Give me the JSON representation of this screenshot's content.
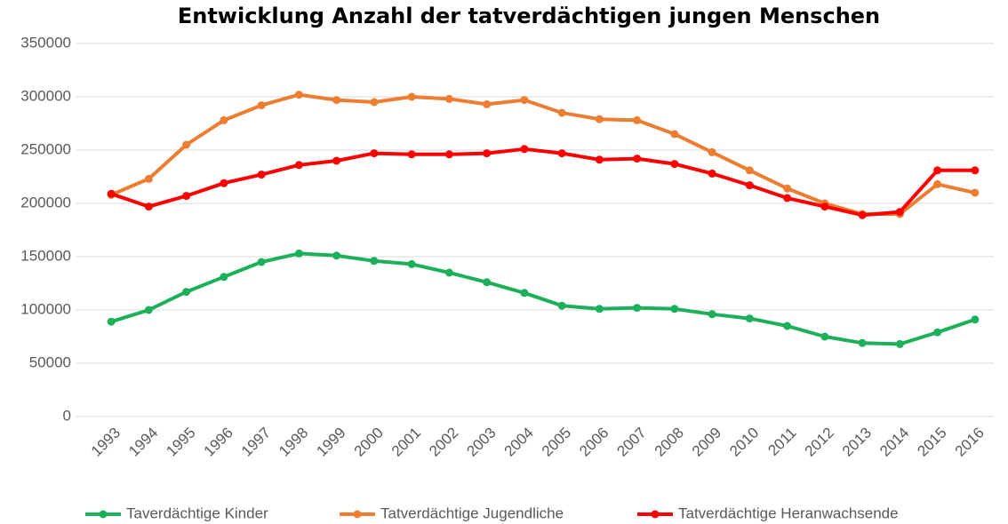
{
  "chart_data": {
    "type": "line",
    "title": "Entwicklung Anzahl der tatverdächtigen jungen Menschen",
    "categories": [
      "1993",
      "1994",
      "1995",
      "1996",
      "1997",
      "1998",
      "1999",
      "2000",
      "2001",
      "2002",
      "2003",
      "2004",
      "2005",
      "2006",
      "2007",
      "2008",
      "2009",
      "2010",
      "2011",
      "2012",
      "2013",
      "2014",
      "2015",
      "2016"
    ],
    "series": [
      {
        "name": "Taverdächtige Kinder",
        "color": "#1db05a",
        "values": [
          89000,
          100000,
          117000,
          131000,
          145000,
          153000,
          151000,
          146000,
          143000,
          135000,
          126000,
          116000,
          104000,
          101000,
          102000,
          101000,
          96000,
          92000,
          85000,
          75000,
          69000,
          68000,
          79000,
          91000
        ]
      },
      {
        "name": "Tatverdächtige Jugendliche",
        "color": "#ed7d31",
        "values": [
          208000,
          223000,
          255000,
          278000,
          292000,
          302000,
          297000,
          295000,
          300000,
          298000,
          293000,
          297000,
          285000,
          279000,
          278000,
          265000,
          248000,
          231000,
          214000,
          200000,
          190000,
          190000,
          218000,
          210000
        ]
      },
      {
        "name": "Tatverdächtige Heranwachsende",
        "color": "#ff0000",
        "values": [
          209000,
          197000,
          207000,
          219000,
          227000,
          236000,
          240000,
          247000,
          246000,
          246000,
          247000,
          251000,
          247000,
          241000,
          242000,
          237000,
          228000,
          217000,
          205000,
          197000,
          189000,
          192000,
          231000,
          231000
        ]
      }
    ],
    "ylim": [
      0,
      350000
    ],
    "yticks": [
      0,
      50000,
      100000,
      150000,
      200000,
      250000,
      300000,
      350000
    ],
    "grid": true,
    "legend": "bottom"
  }
}
